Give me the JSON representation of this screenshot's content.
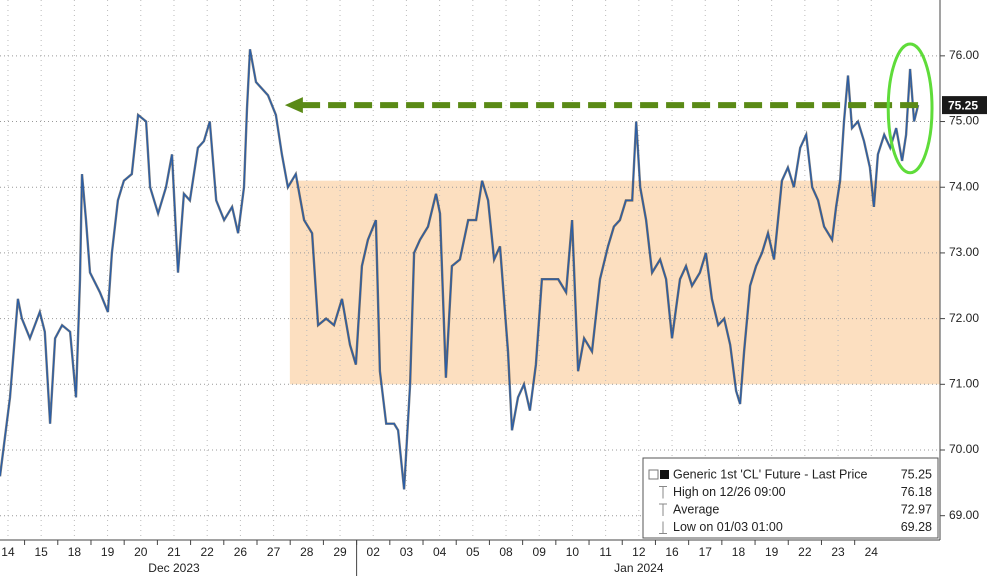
{
  "chart_data": {
    "type": "line",
    "series": [
      {
        "name": "Generic 1st 'CL' Future - Last Price",
        "color": "#2b5ea6",
        "x": [
          -0.24,
          0.06,
          0.3,
          0.42,
          0.66,
          0.96,
          1.11,
          1.27,
          1.42,
          1.63,
          1.87,
          2.05,
          2.17,
          2.23,
          2.35,
          2.47,
          2.77,
          3.01,
          3.13,
          3.31,
          3.49,
          3.73,
          3.92,
          4.16,
          4.28,
          4.52,
          4.76,
          4.94,
          5.12,
          5.3,
          5.48,
          5.72,
          5.9,
          6.08,
          6.27,
          6.51,
          6.75,
          6.93,
          7.11,
          7.2,
          7.29,
          7.47,
          7.65,
          7.83,
          8.07,
          8.25,
          8.43,
          8.67,
          8.92,
          9.16,
          9.34,
          9.58,
          9.82,
          10.06,
          10.3,
          10.48,
          10.66,
          10.84,
          11.08,
          11.2,
          11.39,
          11.63,
          11.75,
          11.93,
          12.11,
          12.23,
          12.41,
          12.65,
          12.89,
          13.01,
          13.19,
          13.37,
          13.61,
          13.86,
          14.1,
          14.28,
          14.46,
          14.64,
          14.82,
          15.06,
          15.18,
          15.36,
          15.54,
          15.72,
          15.9,
          16.08,
          16.33,
          16.57,
          16.81,
          16.99,
          17.17,
          17.35,
          17.59,
          17.83,
          18.07,
          18.25,
          18.43,
          18.61,
          18.8,
          18.92,
          19.04,
          19.22,
          19.4,
          19.64,
          19.82,
          20.0,
          20.24,
          20.42,
          20.6,
          20.84,
          21.02,
          21.2,
          21.39,
          21.57,
          21.75,
          21.93,
          22.05,
          22.17,
          22.35,
          22.53,
          22.71,
          22.89,
          23.07,
          23.19,
          23.31,
          23.49,
          23.67,
          23.86,
          24.04,
          24.22,
          24.4,
          24.58,
          24.82,
          24.94,
          25.06,
          25.18,
          25.3,
          25.42,
          25.6,
          25.78,
          25.96,
          26.08,
          26.2,
          26.39,
          26.57,
          26.75,
          26.93,
          27.05,
          27.17,
          27.29,
          27.41
        ],
        "values": [
          69.6,
          70.8,
          72.3,
          72.0,
          71.7,
          72.1,
          71.8,
          70.4,
          71.7,
          71.9,
          71.8,
          70.8,
          72.6,
          74.2,
          73.5,
          72.7,
          72.4,
          72.1,
          73.0,
          73.8,
          74.1,
          74.2,
          75.1,
          75.0,
          74.0,
          73.6,
          74.0,
          74.5,
          72.7,
          73.9,
          73.8,
          74.6,
          74.7,
          75.0,
          73.8,
          73.5,
          73.7,
          73.3,
          74.0,
          75.2,
          76.1,
          75.6,
          75.5,
          75.4,
          75.1,
          74.5,
          74.0,
          74.2,
          73.5,
          73.3,
          71.9,
          72.0,
          71.9,
          72.3,
          71.6,
          71.3,
          72.8,
          73.2,
          73.5,
          71.2,
          70.4,
          70.4,
          70.3,
          69.4,
          71.0,
          73.0,
          73.2,
          73.4,
          73.9,
          73.6,
          71.1,
          72.8,
          72.9,
          73.5,
          73.5,
          74.1,
          73.8,
          72.9,
          73.1,
          71.5,
          70.3,
          70.8,
          71.0,
          70.6,
          71.3,
          72.6,
          72.6,
          72.6,
          72.4,
          73.5,
          71.2,
          71.7,
          71.5,
          72.6,
          73.1,
          73.4,
          73.5,
          73.8,
          73.8,
          75.0,
          74.0,
          73.5,
          72.7,
          72.9,
          72.6,
          71.7,
          72.6,
          72.8,
          72.5,
          72.7,
          73.0,
          72.3,
          71.9,
          72.0,
          71.6,
          70.9,
          70.7,
          71.5,
          72.5,
          72.8,
          73.0,
          73.3,
          72.9,
          73.5,
          74.1,
          74.3,
          74.0,
          74.6,
          74.8,
          74.0,
          73.8,
          73.4,
          73.2,
          73.7,
          74.1,
          75.0,
          75.7,
          74.9,
          75.0,
          74.7,
          74.3,
          73.7,
          74.5,
          74.8,
          74.6,
          74.9,
          74.4,
          74.8,
          75.8,
          75.0,
          75.25
        ]
      }
    ],
    "xlim": [
      -0.24,
      28.07
    ],
    "xticks": [
      {
        "value": 0,
        "label": "14"
      },
      {
        "value": 1,
        "label": "15"
      },
      {
        "value": 2,
        "label": "18"
      },
      {
        "value": 3,
        "label": "19"
      },
      {
        "value": 4,
        "label": "20"
      },
      {
        "value": 5,
        "label": "21"
      },
      {
        "value": 6,
        "label": "22"
      },
      {
        "value": 7,
        "label": "26"
      },
      {
        "value": 8,
        "label": "27"
      },
      {
        "value": 9,
        "label": "28"
      },
      {
        "value": 10,
        "label": "29"
      },
      {
        "value": 11,
        "label": "02"
      },
      {
        "value": 12,
        "label": "03"
      },
      {
        "value": 13,
        "label": "04"
      },
      {
        "value": 14,
        "label": "05"
      },
      {
        "value": 15,
        "label": "08"
      },
      {
        "value": 16,
        "label": "09"
      },
      {
        "value": 17,
        "label": "10"
      },
      {
        "value": 18,
        "label": "11"
      },
      {
        "value": 19,
        "label": "12"
      },
      {
        "value": 20,
        "label": "16"
      },
      {
        "value": 21,
        "label": "17"
      },
      {
        "value": 22,
        "label": "18"
      },
      {
        "value": 23,
        "label": "19"
      },
      {
        "value": 24,
        "label": "22"
      },
      {
        "value": 25,
        "label": "23"
      },
      {
        "value": 26,
        "label": "24"
      }
    ],
    "x_group_labels": [
      {
        "value": 5,
        "label": "Dec 2023"
      },
      {
        "value": 19,
        "label": "Jan 2024"
      }
    ],
    "ylim": [
      68.63,
      76.85
    ],
    "yticks": [
      {
        "value": 69,
        "label": "69.00"
      },
      {
        "value": 70,
        "label": "70.00"
      },
      {
        "value": 71,
        "label": "71.00"
      },
      {
        "value": 72,
        "label": "72.00"
      },
      {
        "value": 73,
        "label": "73.00"
      },
      {
        "value": 74,
        "label": "74.00"
      },
      {
        "value": 75,
        "label": "75.00"
      },
      {
        "value": 76,
        "label": "76.00"
      }
    ],
    "grid": true,
    "last_price": 75.25,
    "legend": [
      {
        "name": "Generic 1st 'CL' Future - Last Price",
        "value": 75.25
      },
      {
        "name": "High on 12/26 09:00",
        "value": 76.18
      },
      {
        "name": "Average",
        "value": 72.97
      },
      {
        "name": "Low on 01/03 01:00",
        "value": 69.28
      }
    ],
    "band": {
      "x0": 8.49,
      "x1": 28.07,
      "y0": 71,
      "y1": 74.1,
      "color": "#fbd9b5"
    },
    "arrow": {
      "x0": 27.41,
      "x1": 8.34,
      "y": 75.25,
      "color": "#5a8a16"
    },
    "ellipse": {
      "x": 27.17,
      "y": 75.2,
      "rx": 0.66,
      "ry": 0.98,
      "color": "#5fdc3a"
    }
  }
}
